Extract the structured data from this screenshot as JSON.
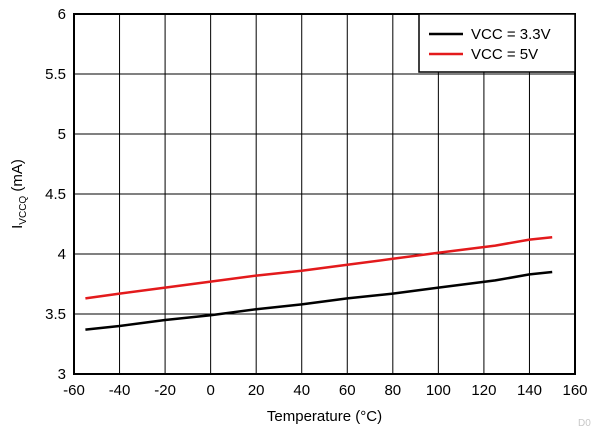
{
  "chart_data": {
    "type": "line",
    "xlabel": "Temperature (°C)",
    "ylabel_main": "I",
    "ylabel_sub": "VCCQ",
    "ylabel_unit": " (mA)",
    "xlim": [
      -60,
      160
    ],
    "ylim": [
      3,
      6
    ],
    "xticks": [
      -60,
      -40,
      -20,
      0,
      20,
      40,
      60,
      80,
      100,
      120,
      140,
      160
    ],
    "yticks": [
      3,
      3.5,
      4,
      4.5,
      5,
      5.5,
      6
    ],
    "ytick_labels": [
      "3",
      "3.5",
      "4",
      "4.5",
      "5",
      "5.5",
      "6"
    ],
    "grid": true,
    "legend_position": "top-right",
    "series": [
      {
        "name": "VCC = 3.3V",
        "color": "#000000",
        "x": [
          -55,
          -40,
          -20,
          0,
          20,
          40,
          60,
          80,
          100,
          125,
          140,
          150
        ],
        "y": [
          3.37,
          3.4,
          3.45,
          3.49,
          3.54,
          3.58,
          3.63,
          3.67,
          3.72,
          3.78,
          3.83,
          3.85
        ]
      },
      {
        "name": "VCC = 5V",
        "color": "#e31a1c",
        "x": [
          -55,
          -40,
          -20,
          0,
          20,
          40,
          60,
          80,
          100,
          125,
          140,
          150
        ],
        "y": [
          3.63,
          3.67,
          3.72,
          3.77,
          3.82,
          3.86,
          3.91,
          3.96,
          4.01,
          4.07,
          4.12,
          4.14
        ]
      }
    ],
    "corner_label": "D0"
  }
}
